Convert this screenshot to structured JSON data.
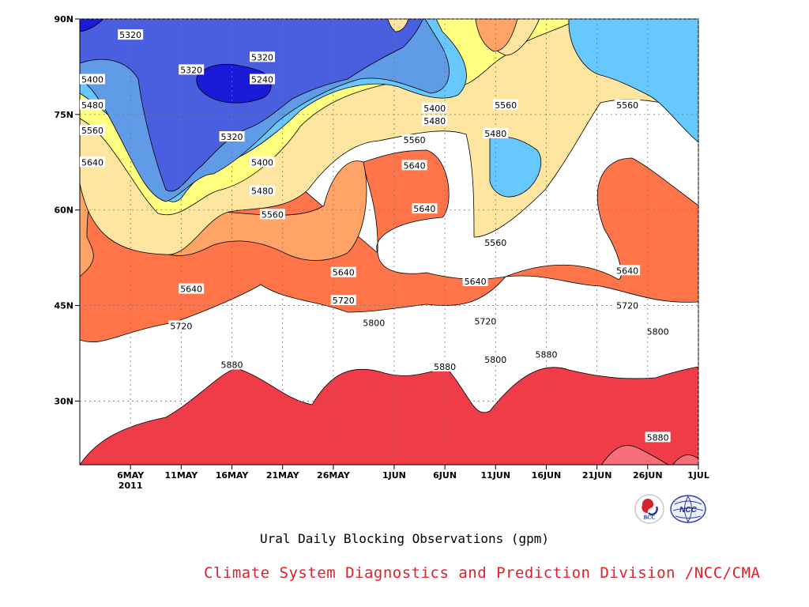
{
  "chart_data": {
    "type": "heatmap",
    "title": "Ural Daily Blocking Observations (gpm)",
    "x_tick_labels": [
      "6MAY",
      "11MAY",
      "16MAY",
      "21MAY",
      "26MAY",
      "1JUN",
      "6JUN",
      "11JUN",
      "16JUN",
      "21JUN",
      "26JUN",
      "1JUL"
    ],
    "x_tick_sublabel": "2011",
    "y_tick_labels": [
      "90N",
      "75N",
      "60N",
      "45N",
      "30N"
    ],
    "xlim": [
      "2011-05-01",
      "2011-07-01"
    ],
    "ylim": [
      20,
      90
    ],
    "contour_interval": 80,
    "levels": [
      5240,
      5320,
      5400,
      5480,
      5560,
      5640,
      5720,
      5800,
      5880
    ],
    "fill_colors": [
      "#1a1ad8",
      "#4a5ee0",
      "#5f9be6",
      "#66c8ff",
      "#ffff80",
      "#ffe6a0",
      "#ffa466",
      "#ff7448",
      "#f66e78",
      "#f03c48"
    ],
    "contour_labels": [
      {
        "text": "5320",
        "date": "2011-05-06",
        "lat": 87.5
      },
      {
        "text": "5320",
        "date": "2011-05-19",
        "lat": 84.0
      },
      {
        "text": "5320",
        "date": "2011-05-12",
        "lat": 82.0
      },
      {
        "text": "5240",
        "date": "2011-05-19",
        "lat": 80.5
      },
      {
        "text": "5400",
        "date": "2011-05-02",
        "lat": 80.5
      },
      {
        "text": "5480",
        "date": "2011-05-02",
        "lat": 76.5
      },
      {
        "text": "5400",
        "date": "2011-06-05",
        "lat": 76.0
      },
      {
        "text": "5560",
        "date": "2011-06-12",
        "lat": 76.5
      },
      {
        "text": "5560",
        "date": "2011-06-24",
        "lat": 76.5
      },
      {
        "text": "5480",
        "date": "2011-06-05",
        "lat": 74.0
      },
      {
        "text": "5560",
        "date": "2011-05-02",
        "lat": 72.5
      },
      {
        "text": "5320",
        "date": "2011-05-16",
        "lat": 71.5
      },
      {
        "text": "5480",
        "date": "2011-06-11",
        "lat": 72.0
      },
      {
        "text": "5560",
        "date": "2011-06-03",
        "lat": 71.0
      },
      {
        "text": "5640",
        "date": "2011-05-02",
        "lat": 67.5
      },
      {
        "text": "5400",
        "date": "2011-05-19",
        "lat": 67.5
      },
      {
        "text": "5640",
        "date": "2011-06-03",
        "lat": 67.0
      },
      {
        "text": "5480",
        "date": "2011-05-19",
        "lat": 63.0
      },
      {
        "text": "5640",
        "date": "2011-06-04",
        "lat": 60.2
      },
      {
        "text": "5560",
        "date": "2011-05-20",
        "lat": 59.3
      },
      {
        "text": "5560",
        "date": "2011-06-11",
        "lat": 54.9
      },
      {
        "text": "5640",
        "date": "2011-05-27",
        "lat": 50.2
      },
      {
        "text": "5640",
        "date": "2011-06-24",
        "lat": 50.5
      },
      {
        "text": "5640",
        "date": "2011-06-09",
        "lat": 48.8
      },
      {
        "text": "5640",
        "date": "2011-05-12",
        "lat": 47.6
      },
      {
        "text": "5720",
        "date": "2011-05-27",
        "lat": 45.8
      },
      {
        "text": "5720",
        "date": "2011-06-24",
        "lat": 45.0
      },
      {
        "text": "5800",
        "date": "2011-05-30",
        "lat": 42.3
      },
      {
        "text": "5720",
        "date": "2011-05-11",
        "lat": 41.8
      },
      {
        "text": "5720",
        "date": "2011-06-10",
        "lat": 42.5
      },
      {
        "text": "5800",
        "date": "2011-06-27",
        "lat": 40.9
      },
      {
        "text": "5880",
        "date": "2011-06-16",
        "lat": 37.3
      },
      {
        "text": "5800",
        "date": "2011-06-11",
        "lat": 36.5
      },
      {
        "text": "5880",
        "date": "2011-05-16",
        "lat": 35.7
      },
      {
        "text": "5880",
        "date": "2011-06-06",
        "lat": 35.4
      },
      {
        "text": "5880",
        "date": "2011-06-27",
        "lat": 24.3
      }
    ],
    "grid": true,
    "grid_style": "dotted"
  },
  "subtitle": "Ural Daily Blocking Observations (gpm)",
  "credit": "Climate System Diagnostics and Prediction Division /NCC/CMA",
  "logos": [
    {
      "text": "BCC",
      "icon": "bcc-logo-icon"
    },
    {
      "text": "NCC",
      "icon": "ncc-logo-icon"
    }
  ]
}
